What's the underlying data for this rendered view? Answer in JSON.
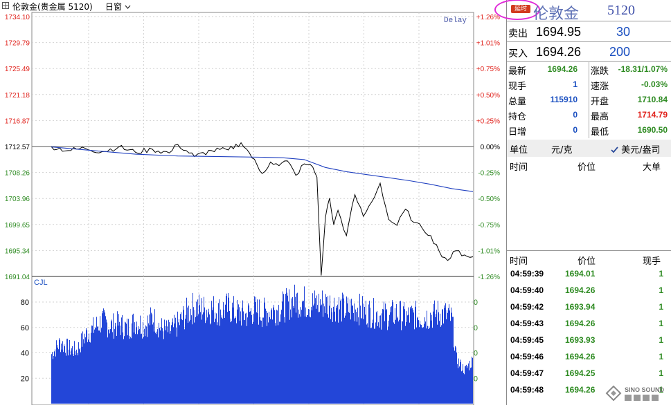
{
  "header": {
    "title": "伦敦金(贵金属 5120)",
    "period": "日窗"
  },
  "chart_data": {
    "type": "line",
    "title": "",
    "delay_label": "Delay",
    "price_ticks": [
      "1734.10",
      "1729.79",
      "1725.49",
      "1721.18",
      "1716.87",
      "1712.57",
      "1708.26",
      "1703.96",
      "1699.65",
      "1695.34",
      "1691.04"
    ],
    "pct_ticks": [
      "+1.26%",
      "+1.01%",
      "+0.75%",
      "+0.50%",
      "+0.25%",
      "0.00%",
      "-0.25%",
      "-0.50%",
      "-0.75%",
      "-1.01%",
      "-1.26%"
    ],
    "ylim": [
      1691.04,
      1734.1
    ],
    "prev_close": 1712.57,
    "series": [
      {
        "color": "#000000",
        "x": [
          0,
          0.04,
          0.08,
          0.12,
          0.16,
          0.2,
          0.24,
          0.28,
          0.3,
          0.34,
          0.38,
          0.42,
          0.45,
          0.47,
          0.5,
          0.52,
          0.54,
          0.56,
          0.58,
          0.6,
          0.62,
          0.63,
          0.64,
          0.65,
          0.66,
          0.67,
          0.68,
          0.7,
          0.72,
          0.74,
          0.76,
          0.78,
          0.8,
          0.82,
          0.84,
          0.86,
          0.88,
          0.9,
          0.92,
          0.94,
          0.96,
          0.98,
          1.0
        ],
        "values": [
          1712.57,
          1711.9,
          1712.3,
          1711.7,
          1712.5,
          1711.6,
          1712.1,
          1711.5,
          1712.9,
          1710.9,
          1711.9,
          1712.0,
          1713.2,
          1711.5,
          1708.1,
          1710.0,
          1709.4,
          1710.2,
          1707.8,
          1709.7,
          1709.2,
          1707.5,
          1691.2,
          1700.8,
          1704.0,
          1699.6,
          1702.0,
          1697.8,
          1704.6,
          1701.0,
          1703.4,
          1706.5,
          1700.5,
          1699.5,
          1702.2,
          1700.0,
          1699.0,
          1697.8,
          1695.2,
          1693.7,
          1695.3,
          1694.6,
          1694.3
        ]
      },
      {
        "color": "#2040c0",
        "x": [
          0,
          0.1,
          0.2,
          0.3,
          0.4,
          0.5,
          0.55,
          0.6,
          0.65,
          0.7,
          0.75,
          0.8,
          0.85,
          0.9,
          0.95,
          1.0
        ],
        "values": [
          1712.5,
          1711.9,
          1711.3,
          1711.0,
          1710.9,
          1710.8,
          1710.7,
          1710.4,
          1709.1,
          1708.4,
          1707.9,
          1707.4,
          1706.9,
          1706.3,
          1705.6,
          1705.1
        ]
      }
    ]
  },
  "volume_data": {
    "label": "CJL",
    "ticks": [
      "80",
      "60",
      "40",
      "20"
    ],
    "right_ticks": [
      "0",
      "0",
      "0",
      "0"
    ],
    "ylim": [
      0,
      98
    ],
    "profile_x": [
      0,
      0.02,
      0.04,
      0.06,
      0.08,
      0.1,
      0.12,
      0.14,
      0.16,
      0.18,
      0.2,
      0.22,
      0.24,
      0.26,
      0.28,
      0.3,
      0.32,
      0.34,
      0.36,
      0.38,
      0.4,
      0.42,
      0.44,
      0.46,
      0.48,
      0.5,
      0.52,
      0.54,
      0.56,
      0.58,
      0.6,
      0.62,
      0.64,
      0.66,
      0.68,
      0.7,
      0.72,
      0.74,
      0.76,
      0.78,
      0.8,
      0.82,
      0.84,
      0.86,
      0.88,
      0.9,
      0.92,
      0.94,
      0.95,
      0.96,
      0.98,
      1.0
    ],
    "profile_v": [
      45,
      55,
      50,
      48,
      62,
      68,
      75,
      70,
      72,
      68,
      75,
      70,
      78,
      68,
      65,
      72,
      82,
      88,
      85,
      86,
      84,
      87,
      82,
      80,
      85,
      82,
      84,
      86,
      90,
      94,
      92,
      90,
      91,
      90,
      88,
      85,
      87,
      84,
      82,
      80,
      80,
      82,
      78,
      80,
      78,
      80,
      82,
      80,
      76,
      40,
      30,
      40
    ]
  },
  "panel": {
    "delay_badge": "延时",
    "name": "伦敦金",
    "code": "5120",
    "sell": {
      "label": "卖出",
      "price": "1694.95",
      "qty": "30"
    },
    "buy": {
      "label": "买入",
      "price": "1694.26",
      "qty": "200"
    },
    "stats": [
      {
        "label": "最新",
        "value": "1694.26",
        "color": "grn"
      },
      {
        "label": "现手",
        "value": "1",
        "color": "blu"
      },
      {
        "label": "总量",
        "value": "115910",
        "color": "blu"
      },
      {
        "label": "持仓",
        "value": "0",
        "color": "blu"
      },
      {
        "label": "日增",
        "value": "0",
        "color": "blu"
      }
    ],
    "stats2": [
      {
        "label": "涨跌",
        "value": "-18.31/1.07%",
        "color": "grn"
      },
      {
        "label": "速涨",
        "value": "-0.03%",
        "color": "grn"
      },
      {
        "label": "开盘",
        "value": "1710.84",
        "color": "grn"
      },
      {
        "label": "最高",
        "value": "1714.79",
        "color": "red"
      },
      {
        "label": "最低",
        "value": "1690.50",
        "color": "grn"
      }
    ],
    "unit": "单位",
    "unit_opt1": "元/克",
    "unit_opt2": "美元/盎司",
    "big_header": {
      "time": "时间",
      "price": "价位",
      "big": "大单"
    },
    "tick_header": {
      "time": "时间",
      "price": "价位",
      "qty": "现手"
    },
    "ticks": [
      {
        "time": "04:59:39",
        "price": "1694.01",
        "qty": "1"
      },
      {
        "time": "04:59:40",
        "price": "1694.26",
        "qty": "1"
      },
      {
        "time": "04:59:42",
        "price": "1693.94",
        "qty": "1"
      },
      {
        "time": "04:59:43",
        "price": "1694.26",
        "qty": "1"
      },
      {
        "time": "04:59:45",
        "price": "1693.93",
        "qty": "1"
      },
      {
        "time": "04:59:46",
        "price": "1694.26",
        "qty": "1"
      },
      {
        "time": "04:59:47",
        "price": "1694.25",
        "qty": "1"
      },
      {
        "time": "04:59:48",
        "price": "1694.26",
        "qty": "1"
      }
    ],
    "logo_text": "SINO SOUND"
  }
}
